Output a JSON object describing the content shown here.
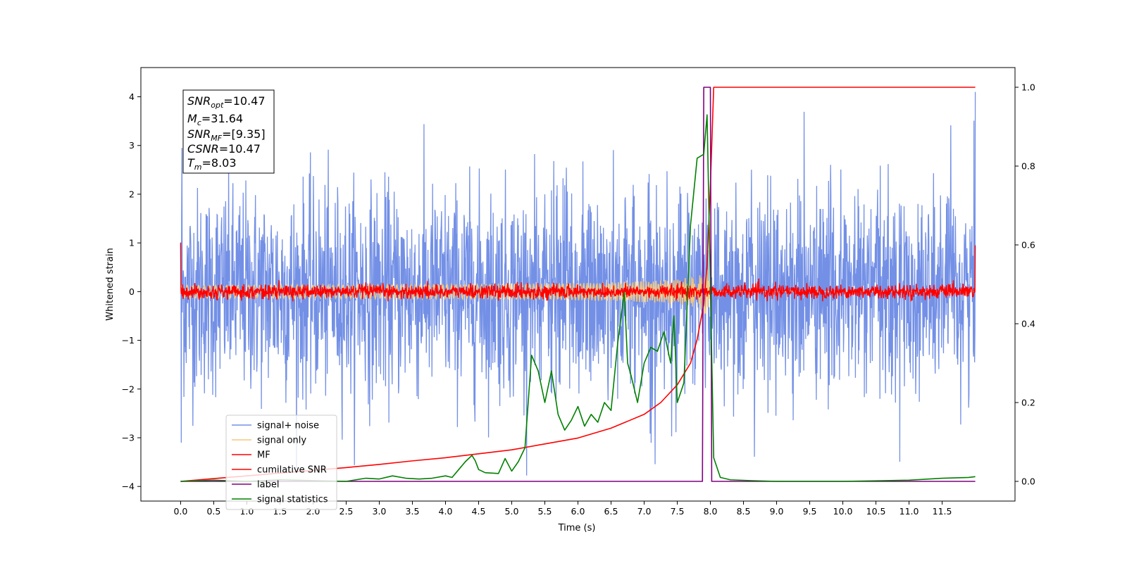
{
  "chart_data": {
    "type": "line",
    "xlabel": "Time (s)",
    "ylabel_left": "Whitened strain",
    "ylabel_right": "",
    "xlim": [
      -0.6,
      12.6
    ],
    "ylim_left": [
      -4.3,
      4.6
    ],
    "ylim_right": [
      -0.05,
      1.05
    ],
    "x_ticks": [
      "0.0",
      "0.5",
      "1.0",
      "1.5",
      "2.0",
      "2.5",
      "3.0",
      "3.5",
      "4.0",
      "4.5",
      "5.0",
      "5.5",
      "6.0",
      "6.5",
      "7.0",
      "7.5",
      "8.0",
      "8.5",
      "9.0",
      "9.5",
      "10.0",
      "10.5",
      "11.0",
      "11.5"
    ],
    "y_ticks_left": [
      "4",
      "3",
      "2",
      "1",
      "0",
      "−1",
      "−2",
      "−3",
      "−4"
    ],
    "y_ticks_right": [
      "1.0",
      "0.8",
      "0.6",
      "0.4",
      "0.2",
      "0.0"
    ],
    "grid": false,
    "legend_position": "lower-left",
    "annotation": {
      "snr_opt": {
        "main": "SNR",
        "sub": "opt",
        "value": "=10.47"
      },
      "mc": {
        "main": "M",
        "sub": "c",
        "value": "=31.64"
      },
      "snr_mf": {
        "main": "SNR",
        "sub": "MF",
        "value": "=[9.35]"
      },
      "csnr": {
        "main": "CSNR",
        "sub": "",
        "value": "=10.47"
      },
      "tm": {
        "main": "T",
        "sub": "m",
        "value": "=8.03"
      }
    },
    "series": [
      {
        "name": "signal+ noise",
        "color": "#7390e6",
        "axis": "left",
        "kind": "noise",
        "amplitude_range": [
          -3.9,
          3.9
        ],
        "typical_range": [
          -2.5,
          2.5
        ],
        "x_range": [
          0.0,
          12.0
        ]
      },
      {
        "name": "signal only",
        "color": "#f5c77e",
        "axis": "left",
        "kind": "chirp",
        "peak_amplitude": 0.45,
        "merger_time": 7.95,
        "x_range": [
          0.0,
          12.0
        ]
      },
      {
        "name": "MF",
        "color": "#ff0000",
        "axis": "left",
        "kind": "noise",
        "amplitude_range": [
          -0.2,
          0.35
        ],
        "x_range": [
          0.0,
          12.0
        ]
      },
      {
        "name": "cumilative SNR",
        "color": "#ff0000",
        "axis": "right",
        "x": [
          0.0,
          0.5,
          1.0,
          1.5,
          2.0,
          2.5,
          3.0,
          3.5,
          4.0,
          4.5,
          5.0,
          5.5,
          6.0,
          6.5,
          7.0,
          7.25,
          7.5,
          7.7,
          7.8,
          7.9,
          7.95,
          8.0,
          8.05,
          12.0
        ],
        "y": [
          0.0,
          0.007,
          0.014,
          0.021,
          0.028,
          0.035,
          0.043,
          0.052,
          0.06,
          0.07,
          0.08,
          0.095,
          0.11,
          0.135,
          0.17,
          0.2,
          0.245,
          0.3,
          0.36,
          0.45,
          0.55,
          0.75,
          1.0,
          1.0
        ]
      },
      {
        "name": "label",
        "color": "#800080",
        "axis": "right",
        "x": [
          0.0,
          7.88,
          7.9,
          8.0,
          8.02,
          12.0
        ],
        "y": [
          0.0,
          0.0,
          1.0,
          1.0,
          0.0,
          0.0
        ]
      },
      {
        "name": "signal statistics",
        "color": "#008000",
        "axis": "right",
        "x": [
          0.0,
          0.5,
          1.0,
          1.5,
          2.0,
          2.5,
          2.8,
          3.0,
          3.2,
          3.4,
          3.6,
          3.8,
          4.0,
          4.1,
          4.2,
          4.3,
          4.4,
          4.45,
          4.5,
          4.6,
          4.8,
          4.9,
          5.0,
          5.1,
          5.2,
          5.3,
          5.4,
          5.5,
          5.6,
          5.7,
          5.8,
          5.9,
          6.0,
          6.1,
          6.2,
          6.3,
          6.4,
          6.5,
          6.6,
          6.7,
          6.75,
          6.8,
          6.9,
          7.0,
          7.1,
          7.2,
          7.3,
          7.4,
          7.45,
          7.5,
          7.6,
          7.7,
          7.8,
          7.9,
          7.95,
          8.05,
          8.15,
          8.3,
          8.6,
          9.0,
          10.0,
          11.0,
          11.5,
          11.9,
          12.0
        ],
        "y": [
          0.0,
          0.003,
          0.0,
          0.004,
          0.002,
          0.0,
          0.008,
          0.006,
          0.014,
          0.008,
          0.006,
          0.008,
          0.014,
          0.01,
          0.03,
          0.05,
          0.066,
          0.052,
          0.03,
          0.022,
          0.02,
          0.058,
          0.026,
          0.05,
          0.085,
          0.32,
          0.28,
          0.2,
          0.28,
          0.17,
          0.13,
          0.155,
          0.19,
          0.14,
          0.17,
          0.15,
          0.2,
          0.18,
          0.35,
          0.48,
          0.3,
          0.27,
          0.2,
          0.3,
          0.34,
          0.33,
          0.38,
          0.3,
          0.42,
          0.2,
          0.25,
          0.65,
          0.82,
          0.83,
          0.93,
          0.06,
          0.01,
          0.004,
          0.002,
          0.0,
          0.0,
          0.003,
          0.008,
          0.01,
          0.012
        ]
      }
    ]
  }
}
